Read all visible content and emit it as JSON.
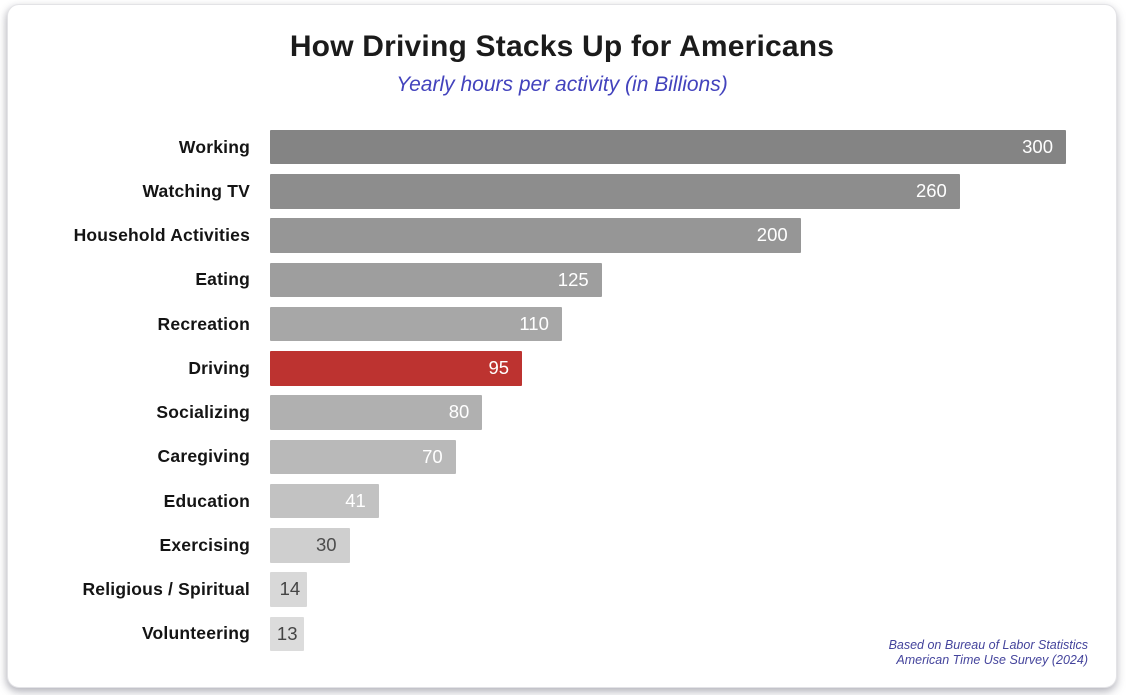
{
  "header": {
    "title": "How Driving Stacks Up for Americans",
    "subtitle": "Yearly hours per activity (in Billions)"
  },
  "footer": {
    "source_line1": "Based on Bureau of Labor Statistics",
    "source_line2": "American Time Use Survey (2024)"
  },
  "chart_data": {
    "type": "bar",
    "orientation": "horizontal",
    "title": "How Driving Stacks Up for Americans",
    "subtitle": "Yearly hours per activity (in Billions)",
    "categories": [
      "Working",
      "Watching TV",
      "Household Activities",
      "Eating",
      "Recreation",
      "Driving",
      "Socializing",
      "Caregiving",
      "Education",
      "Exercising",
      "Religious / Spiritual",
      "Volunteering"
    ],
    "values": [
      300,
      260,
      200,
      125,
      110,
      95,
      80,
      70,
      41,
      30,
      14,
      13
    ],
    "xlabel": "",
    "ylabel": "",
    "xlim": [
      0,
      300
    ],
    "grid": false,
    "legend": false,
    "value_labels": "inside-end",
    "highlight_category": "Driving",
    "highlight_color": "#bd3330",
    "bar_colors": [
      "#848484",
      "#8d8d8d",
      "#969696",
      "#9e9e9e",
      "#a7a7a7",
      "#bd3330",
      "#b0b0b0",
      "#b9b9b9",
      "#c2c2c2",
      "#cfcfcf",
      "#d8d8d8",
      "#dcdcdc"
    ],
    "value_label_colors": [
      "#ffffff",
      "#ffffff",
      "#ffffff",
      "#ffffff",
      "#ffffff",
      "#ffffff",
      "#ffffff",
      "#ffffff",
      "#ffffff",
      "#4d4d4d",
      "#454545",
      "#454545"
    ],
    "annotation": "Based on Bureau of Labor Statistics — American Time Use Survey (2024)"
  }
}
